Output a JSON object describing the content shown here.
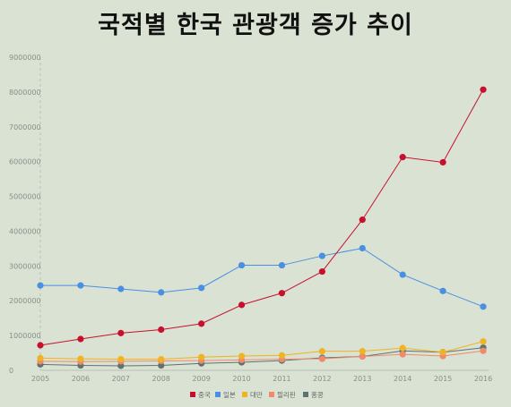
{
  "title": "국적별 한국 관광객 증가 추이",
  "chart_data": {
    "type": "line",
    "title": "국적별 한국 관광객 증가 추이",
    "xlabel": "",
    "ylabel": "",
    "x": [
      "2005",
      "2006",
      "2007",
      "2008",
      "2009",
      "2010",
      "2011",
      "2012",
      "2013",
      "2014",
      "2015",
      "2016"
    ],
    "ylim": [
      0,
      9000000
    ],
    "yticks": [
      0,
      1000000,
      2000000,
      3000000,
      4000000,
      5000000,
      6000000,
      7000000,
      8000000,
      9000000
    ],
    "grid": false,
    "legend": "bottom",
    "series": [
      {
        "name": "중국",
        "color": "#c8102e",
        "values": [
          720000,
          900000,
          1070000,
          1170000,
          1340000,
          1880000,
          2220000,
          2840000,
          4330000,
          6130000,
          5980000,
          8070000
        ]
      },
      {
        "name": "일본",
        "color": "#4a90e2",
        "values": [
          2440000,
          2440000,
          2340000,
          2240000,
          2370000,
          3020000,
          3020000,
          3290000,
          3510000,
          2750000,
          2280000,
          1830000
        ]
      },
      {
        "name": "대만",
        "color": "#f0b323",
        "values": [
          350000,
          330000,
          320000,
          320000,
          380000,
          410000,
          430000,
          550000,
          550000,
          640000,
          520000,
          830000
        ]
      },
      {
        "name": "필리핀",
        "color": "#f08a6a",
        "values": [
          260000,
          250000,
          260000,
          270000,
          280000,
          300000,
          320000,
          330000,
          400000,
          460000,
          410000,
          560000
        ]
      },
      {
        "name": "홍콩",
        "color": "#5f7272",
        "values": [
          170000,
          140000,
          130000,
          140000,
          200000,
          230000,
          280000,
          360000,
          400000,
          560000,
          520000,
          650000
        ]
      }
    ]
  }
}
